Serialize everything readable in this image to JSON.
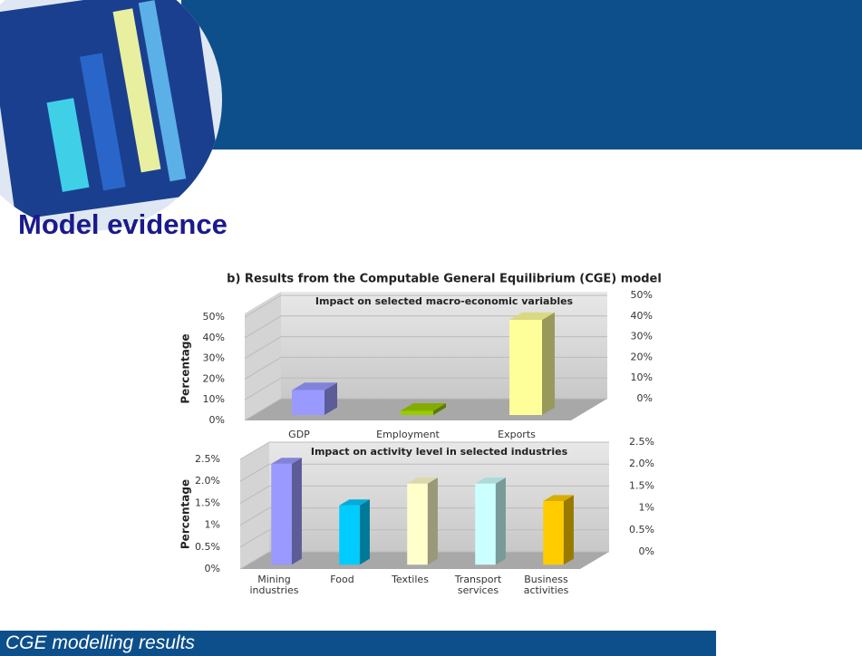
{
  "slide_title": "Model evidence",
  "figure_title": "b) Results from the Computable General Equilibrium (CGE) model",
  "footer": "CGE modelling results",
  "chart_data": [
    {
      "type": "bar3d",
      "title": "Impact on selected macro-economic variables",
      "y_label": "Percentage",
      "categories": [
        "GDP",
        "Employment",
        "Exports"
      ],
      "values": [
        12,
        2,
        46
      ],
      "colors": [
        "#9999ff",
        "#99cc00",
        "#ffff99"
      ],
      "ylim": [
        0,
        50
      ],
      "yticks": [
        {
          "value": 0,
          "label": "0%"
        },
        {
          "value": 10,
          "label": "10%"
        },
        {
          "value": 20,
          "label": "20%"
        },
        {
          "value": 30,
          "label": "30%"
        },
        {
          "value": 40,
          "label": "40%"
        },
        {
          "value": 50,
          "label": "50%"
        }
      ]
    },
    {
      "type": "bar3d",
      "title": "Impact on activity level in selected industries",
      "y_label": "Percentage",
      "categories": [
        "Mining industries",
        "Food",
        "Textiles",
        "Transport services",
        "Business activities"
      ],
      "values": [
        2.3,
        1.35,
        1.85,
        1.85,
        1.45
      ],
      "colors": [
        "#9999ff",
        "#00ccff",
        "#ffffcc",
        "#ccffff",
        "#ffcc00"
      ],
      "ylim": [
        0,
        2.5
      ],
      "yticks": [
        {
          "value": 0,
          "label": "0%"
        },
        {
          "value": 0.5,
          "label": "0.5%"
        },
        {
          "value": 1,
          "label": "1%"
        },
        {
          "value": 1.5,
          "label": "1.5%"
        },
        {
          "value": 2,
          "label": "2.0%"
        },
        {
          "value": 2.5,
          "label": "2.5%"
        }
      ]
    }
  ]
}
